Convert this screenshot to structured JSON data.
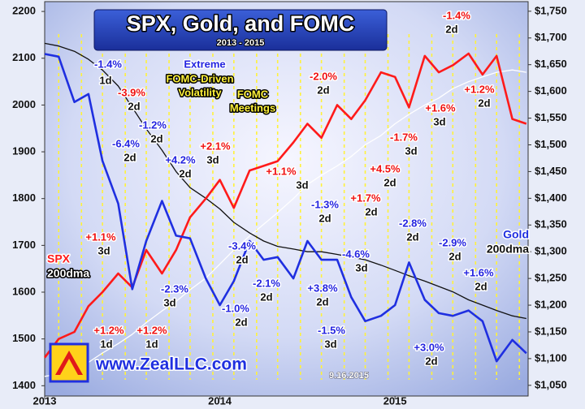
{
  "chart_data": {
    "type": "line",
    "title": "SPX, Gold, and FOMC",
    "subtitle": "2013 - 2015",
    "xlim": [
      2013,
      2015.76
    ],
    "xticks": [
      2013,
      2014,
      2015
    ],
    "ylim": [
      1378,
      2221
    ],
    "yticks": [
      1400,
      1500,
      1600,
      1700,
      1800,
      1900,
      2000,
      2100,
      2200
    ],
    "y2lim": [
      1030,
      1768
    ],
    "y2ticks": [
      {
        "value": 1050,
        "label": "$1,050"
      },
      {
        "value": 1100,
        "label": "$1,100"
      },
      {
        "value": 1150,
        "label": "$1,150"
      },
      {
        "value": 1200,
        "label": "$1,200"
      },
      {
        "value": 1250,
        "label": "$1,250"
      },
      {
        "value": 1300,
        "label": "$1,300"
      },
      {
        "value": 1350,
        "label": "$1,350"
      },
      {
        "value": 1400,
        "label": "$1,400"
      },
      {
        "value": 1450,
        "label": "$1,450"
      },
      {
        "value": 1500,
        "label": "$1,500"
      },
      {
        "value": 1550,
        "label": "$1,550"
      },
      {
        "value": 1600,
        "label": "$1,600"
      },
      {
        "value": 1650,
        "label": "$1,650"
      },
      {
        "value": 1700,
        "label": "$1,700"
      },
      {
        "value": 1750,
        "label": "$1,750"
      }
    ],
    "x": [
      2013.0,
      2013.08,
      2013.17,
      2013.25,
      2013.33,
      2013.42,
      2013.5,
      2013.58,
      2013.67,
      2013.75,
      2013.83,
      2013.92,
      2014.0,
      2014.08,
      2014.17,
      2014.25,
      2014.33,
      2014.42,
      2014.5,
      2014.58,
      2014.67,
      2014.75,
      2014.83,
      2014.92,
      2015.0,
      2015.08,
      2015.17,
      2015.25,
      2015.33,
      2015.42,
      2015.5,
      2015.58,
      2015.67,
      2015.75
    ],
    "series": [
      {
        "name": "SPX",
        "color": "#ff1a1a",
        "axis": "y",
        "values": [
          1460,
          1500,
          1515,
          1570,
          1600,
          1640,
          1610,
          1690,
          1640,
          1690,
          1760,
          1800,
          1840,
          1780,
          1860,
          1870,
          1880,
          1920,
          1960,
          1930,
          2000,
          1970,
          2010,
          2070,
          2060,
          1995,
          2105,
          2070,
          2085,
          2110,
          2065,
          2105,
          1970,
          1960
        ]
      },
      {
        "name": "200dma",
        "color": "#ffffff",
        "axis": "y",
        "values": [
          1420,
          1425,
          1435,
          1450,
          1470,
          1490,
          1510,
          1535,
          1560,
          1580,
          1605,
          1630,
          1660,
          1690,
          1720,
          1745,
          1770,
          1800,
          1830,
          1850,
          1870,
          1890,
          1915,
          1935,
          1960,
          1980,
          2000,
          2015,
          2035,
          2050,
          2060,
          2070,
          2075,
          2070
        ]
      },
      {
        "name": "Gold",
        "color": "#1f2fe0",
        "axis": "y2",
        "values": [
          1670,
          1665,
          1580,
          1595,
          1470,
          1390,
          1230,
          1320,
          1395,
          1330,
          1325,
          1250,
          1200,
          1245,
          1320,
          1285,
          1290,
          1250,
          1320,
          1285,
          1285,
          1215,
          1170,
          1180,
          1200,
          1280,
          1210,
          1185,
          1180,
          1190,
          1170,
          1095,
          1135,
          1110
        ]
      },
      {
        "name": "200dma",
        "color": "#111111",
        "axis": "y2",
        "values": [
          1690,
          1685,
          1675,
          1660,
          1640,
          1610,
          1570,
          1530,
          1490,
          1450,
          1420,
          1400,
          1380,
          1355,
          1335,
          1320,
          1310,
          1305,
          1300,
          1300,
          1295,
          1290,
          1285,
          1275,
          1265,
          1255,
          1245,
          1235,
          1225,
          1210,
          1200,
          1190,
          1180,
          1175
        ]
      }
    ],
    "fomc_meetings": [
      2013.08,
      2013.21,
      2013.33,
      2013.46,
      2013.58,
      2013.71,
      2013.83,
      2013.96,
      2014.08,
      2014.21,
      2014.33,
      2014.46,
      2014.58,
      2014.71,
      2014.83,
      2014.96,
      2015.08,
      2015.21,
      2015.33,
      2015.46,
      2015.58,
      2015.71
    ],
    "fomc_color": "#fff23a",
    "callouts": [
      [
        "Extreme",
        "FOMC-Driven",
        "Volatility"
      ],
      [
        "FOMC",
        "Meetings"
      ]
    ],
    "annotations": [
      {
        "text": "-1.4%",
        "days": "1d",
        "color": "#2424e0"
      },
      {
        "text": "-3.9%",
        "days": "2d",
        "color": "#f01010"
      },
      {
        "text": "-6.4%",
        "days": "2d",
        "color": "#2424e0"
      },
      {
        "text": "-1.2%",
        "days": "2d",
        "color": "#2424e0"
      },
      {
        "text": "+4.2%",
        "days": "2d",
        "color": "#2424e0"
      },
      {
        "text": "+2.1%",
        "days": "3d",
        "color": "#f01010"
      },
      {
        "text": "-2.0%",
        "days": "2d",
        "color": "#f01010"
      },
      {
        "text": "-1.4%",
        "days": "2d",
        "color": "#f01010"
      },
      {
        "text": "+1.2%",
        "days": "2d",
        "color": "#f01010"
      },
      {
        "text": "+1.6%",
        "days": "3d",
        "color": "#f01010"
      },
      {
        "text": "-1.7%",
        "days": "3d",
        "color": "#f01010"
      },
      {
        "text": "+4.5%",
        "days": "2d",
        "color": "#f01010"
      },
      {
        "text": "+1.1%",
        "days": "3d",
        "color": "#f01010"
      },
      {
        "text": "+1.7%",
        "days": "2d",
        "color": "#f01010"
      },
      {
        "text": "-1.3%",
        "days": "2d",
        "color": "#2424e0"
      },
      {
        "text": "-2.8%",
        "days": "2d",
        "color": "#2424e0"
      },
      {
        "text": "-2.9%",
        "days": "2d",
        "color": "#2424e0"
      },
      {
        "text": "+1.6%",
        "days": "2d",
        "color": "#2424e0"
      },
      {
        "text": "-4.6%",
        "days": "3d",
        "color": "#2424e0"
      },
      {
        "text": "-3.4%",
        "days": "2d",
        "color": "#2424e0"
      },
      {
        "text": "-2.1%",
        "days": "2d",
        "color": "#2424e0"
      },
      {
        "text": "+3.8%",
        "days": "2d",
        "color": "#2424e0"
      },
      {
        "text": "-1.0%",
        "days": "2d",
        "color": "#2424e0"
      },
      {
        "text": "-1.5%",
        "days": "3d",
        "color": "#2424e0"
      },
      {
        "text": "+3.0%",
        "days": "2d",
        "color": "#2424e0"
      },
      {
        "text": "-2.3%",
        "days": "3d",
        "color": "#2424e0"
      },
      {
        "text": "+1.1%",
        "days": "3d",
        "color": "#f01010"
      },
      {
        "text": "+1.2%",
        "days": "1d",
        "color": "#f01010"
      },
      {
        "text": "+1.2%",
        "days": "1d",
        "color": "#f01010"
      }
    ],
    "website": "www.ZealLLC.com",
    "date": "9.16.2015"
  }
}
